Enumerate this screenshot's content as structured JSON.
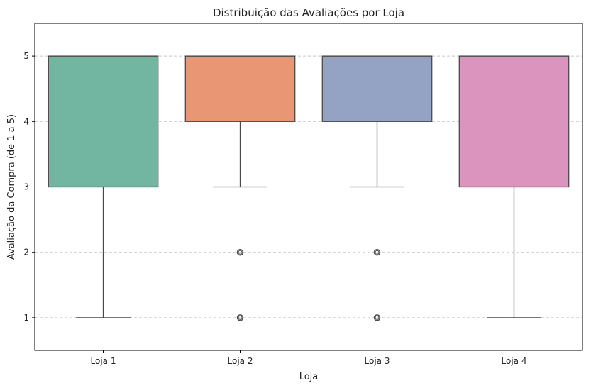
{
  "chart_data": {
    "type": "box",
    "title": "Distribuição das Avaliações por Loja",
    "xlabel": "Loja",
    "ylabel": "Avaliação da Compra (de 1 a 5)",
    "categories": [
      "Loja 1",
      "Loja 2",
      "Loja 3",
      "Loja 4"
    ],
    "yticks": [
      "1",
      "2",
      "3",
      "4",
      "5"
    ],
    "ylim": [
      0.5,
      5.5
    ],
    "grid": "y-dashed",
    "boxes": [
      {
        "category": "Loja 1",
        "whisker_low": 1,
        "q1": 3,
        "median": 5,
        "q3": 5,
        "whisker_high": 5,
        "outliers": [],
        "color": "#72b5a1"
      },
      {
        "category": "Loja 2",
        "whisker_low": 3,
        "q1": 4,
        "median": 5,
        "q3": 5,
        "whisker_high": 5,
        "outliers": [
          2,
          1
        ],
        "color": "#e99675"
      },
      {
        "category": "Loja 3",
        "whisker_low": 3,
        "q1": 4,
        "median": 5,
        "q3": 5,
        "whisker_high": 5,
        "outliers": [
          2,
          1
        ],
        "color": "#94a3c3"
      },
      {
        "category": "Loja 4",
        "whisker_low": 1,
        "q1": 3,
        "median": 5,
        "q3": 5,
        "whisker_high": 5,
        "outliers": [],
        "color": "#db94bd"
      }
    ]
  }
}
